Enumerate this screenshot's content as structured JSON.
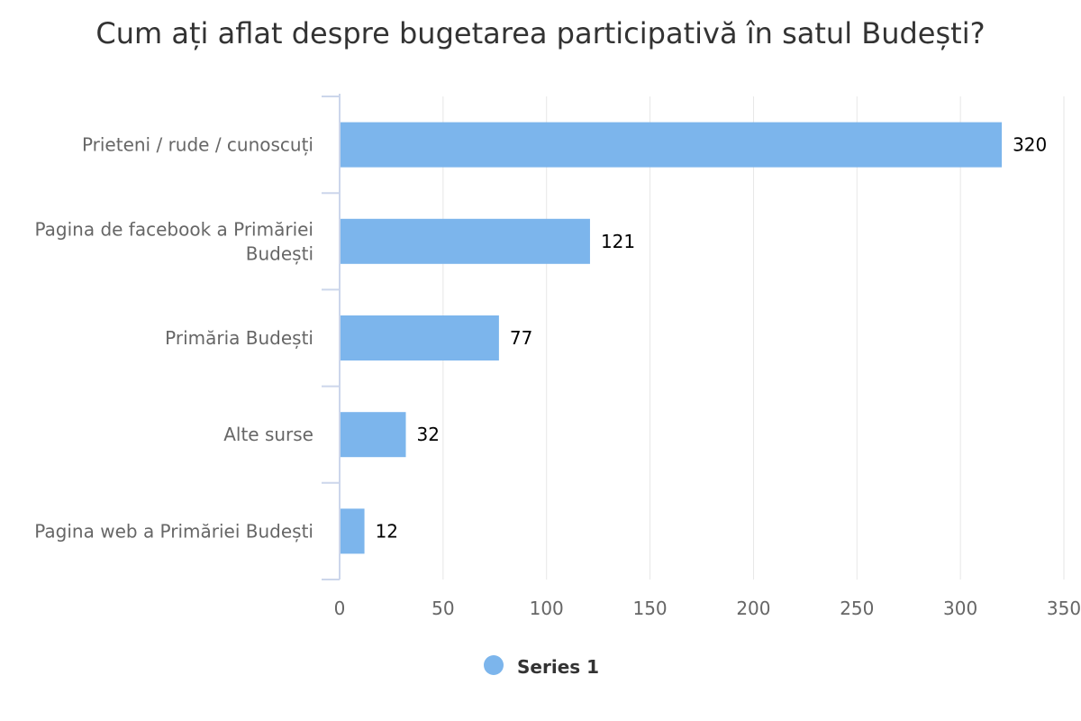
{
  "chart_data": {
    "type": "bar",
    "orientation": "horizontal",
    "title": "Cum ați aflat despre bugetarea participativă în satul Budești?",
    "categories": [
      [
        "Prieteni / rude / cunoscuți"
      ],
      [
        "Pagina de facebook a Primăriei",
        "Budești"
      ],
      [
        "Primăria Budești"
      ],
      [
        "Alte surse"
      ],
      [
        "Pagina web a Primăriei Budești"
      ]
    ],
    "series": [
      {
        "name": "Series 1",
        "values": [
          320,
          121,
          77,
          32,
          12
        ],
        "color": "#7cb5ec"
      }
    ],
    "xlim": [
      0,
      350
    ],
    "xticks": [
      "0",
      "50",
      "100",
      "150",
      "200",
      "250",
      "300",
      "350"
    ],
    "grid": true,
    "data_labels": true,
    "legend_position": "bottom-center"
  },
  "colors": {
    "grid": "#e6e6e6",
    "axis": "#ccd6eb"
  }
}
